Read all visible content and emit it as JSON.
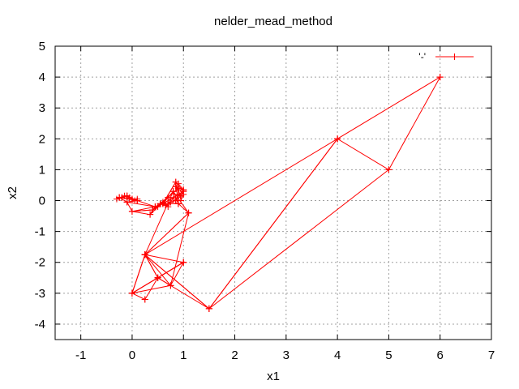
{
  "chart_data": {
    "type": "line",
    "title": "nelder_mead_method",
    "xlabel": "x1",
    "ylabel": "x2",
    "xlim": [
      -1.5,
      7
    ],
    "ylim": [
      -4.5,
      5
    ],
    "xticks": [
      -1,
      0,
      1,
      2,
      3,
      4,
      5,
      6,
      7
    ],
    "yticks": [
      -4,
      -3,
      -2,
      -1,
      0,
      1,
      2,
      3,
      4,
      5
    ],
    "grid": true,
    "legend_position": "top-right",
    "series": [
      {
        "name": "'-'",
        "color": "#ff0000",
        "marker": "plus",
        "segments": [
          [
            [
              6,
              4
            ],
            [
              4,
              2
            ],
            [
              5,
              1
            ],
            [
              6,
              4
            ]
          ],
          [
            [
              4,
              2
            ],
            [
              1.5,
              -3.5
            ],
            [
              5,
              1
            ]
          ],
          [
            [
              4,
              2
            ],
            [
              1.5,
              -3.5
            ],
            [
              0.25,
              -1.75
            ],
            [
              4,
              2
            ]
          ],
          [
            [
              1.5,
              -3.5
            ],
            [
              0.25,
              -1.75
            ],
            [
              0.5,
              -2.5
            ],
            [
              1.5,
              -3.5
            ]
          ],
          [
            [
              0.5,
              -2.5
            ],
            [
              0.25,
              -1.75
            ],
            [
              0.0,
              -3.0
            ],
            [
              0.5,
              -2.5
            ]
          ],
          [
            [
              0.25,
              -1.75
            ],
            [
              0.0,
              -3.0
            ],
            [
              1.0,
              -2.0
            ],
            [
              0.25,
              -1.75
            ]
          ],
          [
            [
              0.0,
              -3.0
            ],
            [
              0.75,
              -2.75
            ],
            [
              1.0,
              -2.0
            ],
            [
              0.0,
              -3.0
            ]
          ],
          [
            [
              0.25,
              -1.75
            ],
            [
              0.75,
              -2.75
            ],
            [
              0.5,
              -2.5
            ]
          ],
          [
            [
              0.25,
              -3.2
            ],
            [
              0.5,
              -2.5
            ],
            [
              1.0,
              -2.0
            ]
          ],
          [
            [
              0.0,
              -3.0
            ],
            [
              0.25,
              -3.2
            ]
          ],
          [
            [
              0.25,
              -1.75
            ],
            [
              1.1,
              -0.4
            ],
            [
              0.75,
              -2.75
            ]
          ],
          [
            [
              0.25,
              -1.75
            ],
            [
              1.1,
              -0.4
            ],
            [
              0.8,
              0.3
            ],
            [
              0.25,
              -1.75
            ]
          ],
          [
            [
              0.8,
              0.3
            ],
            [
              0.9,
              -0.1
            ],
            [
              1.1,
              -0.4
            ]
          ],
          [
            [
              0.8,
              0.3
            ],
            [
              0.9,
              -0.1
            ],
            [
              0.6,
              -0.1
            ],
            [
              0.8,
              0.3
            ]
          ],
          [
            [
              0.9,
              -0.1
            ],
            [
              0.6,
              -0.1
            ],
            [
              0.85,
              0.6
            ],
            [
              0.9,
              -0.1
            ]
          ],
          [
            [
              0.6,
              -0.1
            ],
            [
              0.85,
              0.6
            ],
            [
              1.0,
              0.3
            ],
            [
              0.6,
              -0.1
            ]
          ],
          [
            [
              0.6,
              -0.1
            ],
            [
              0.4,
              -0.3
            ],
            [
              1.0,
              0.3
            ]
          ],
          [
            [
              0.4,
              -0.3
            ],
            [
              0.7,
              0.1
            ],
            [
              0.9,
              0.4
            ],
            [
              0.4,
              -0.3
            ]
          ],
          [
            [
              0.4,
              -0.3
            ],
            [
              0.35,
              -0.45
            ],
            [
              0.7,
              0.1
            ]
          ],
          [
            [
              0.9,
              0.4
            ],
            [
              0.95,
              0.0
            ],
            [
              1.0,
              0.2
            ],
            [
              0.9,
              0.4
            ]
          ],
          [
            [
              0.4,
              -0.3
            ],
            [
              0.0,
              -0.35
            ],
            [
              0.35,
              -0.45
            ]
          ],
          [
            [
              0.4,
              -0.3
            ],
            [
              0.0,
              -0.35
            ],
            [
              0.45,
              -0.2
            ],
            [
              0.4,
              -0.3
            ]
          ],
          [
            [
              0.0,
              -0.35
            ],
            [
              -0.1,
              -0.05
            ],
            [
              0.45,
              -0.2
            ]
          ],
          [
            [
              -0.1,
              -0.05
            ],
            [
              0.1,
              0.0
            ],
            [
              0.45,
              -0.2
            ]
          ],
          [
            [
              -0.1,
              -0.05
            ],
            [
              -0.25,
              0.1
            ],
            [
              0.1,
              0.0
            ],
            [
              -0.1,
              -0.05
            ]
          ],
          [
            [
              -0.25,
              0.1
            ],
            [
              -0.1,
              0.15
            ],
            [
              0.1,
              0.0
            ]
          ],
          [
            [
              -0.25,
              0.1
            ],
            [
              -0.3,
              0.05
            ],
            [
              -0.1,
              0.15
            ],
            [
              -0.25,
              0.1
            ]
          ],
          [
            [
              -0.1,
              0.15
            ],
            [
              0.0,
              0.05
            ],
            [
              -0.05,
              0.1
            ],
            [
              -0.1,
              0.15
            ]
          ],
          [
            [
              0.0,
              0.05
            ],
            [
              0.1,
              0.05
            ],
            [
              0.05,
              0.0
            ],
            [
              0.0,
              0.05
            ]
          ],
          [
            [
              0.45,
              -0.2
            ],
            [
              0.55,
              -0.1
            ],
            [
              0.5,
              -0.2
            ],
            [
              0.45,
              -0.2
            ]
          ],
          [
            [
              0.55,
              -0.1
            ],
            [
              0.65,
              -0.15
            ],
            [
              0.6,
              -0.05
            ],
            [
              0.55,
              -0.1
            ]
          ],
          [
            [
              0.65,
              -0.15
            ],
            [
              0.75,
              -0.05
            ],
            [
              0.7,
              -0.2
            ],
            [
              0.65,
              -0.15
            ]
          ],
          [
            [
              0.75,
              -0.05
            ],
            [
              0.85,
              0.0
            ],
            [
              0.8,
              0.1
            ],
            [
              0.75,
              -0.05
            ]
          ],
          [
            [
              0.85,
              0.0
            ],
            [
              0.95,
              0.15
            ],
            [
              0.9,
              0.2
            ],
            [
              0.85,
              0.0
            ]
          ],
          [
            [
              0.95,
              0.15
            ],
            [
              1.0,
              0.35
            ],
            [
              0.85,
              0.45
            ],
            [
              0.95,
              0.15
            ]
          ],
          [
            [
              0.85,
              0.45
            ],
            [
              0.9,
              0.55
            ],
            [
              1.0,
              0.35
            ]
          ],
          [
            [
              -0.2,
              0.1
            ],
            [
              -0.15,
              0.15
            ],
            [
              -0.05,
              0.05
            ],
            [
              -0.2,
              0.1
            ]
          ]
        ]
      }
    ]
  }
}
